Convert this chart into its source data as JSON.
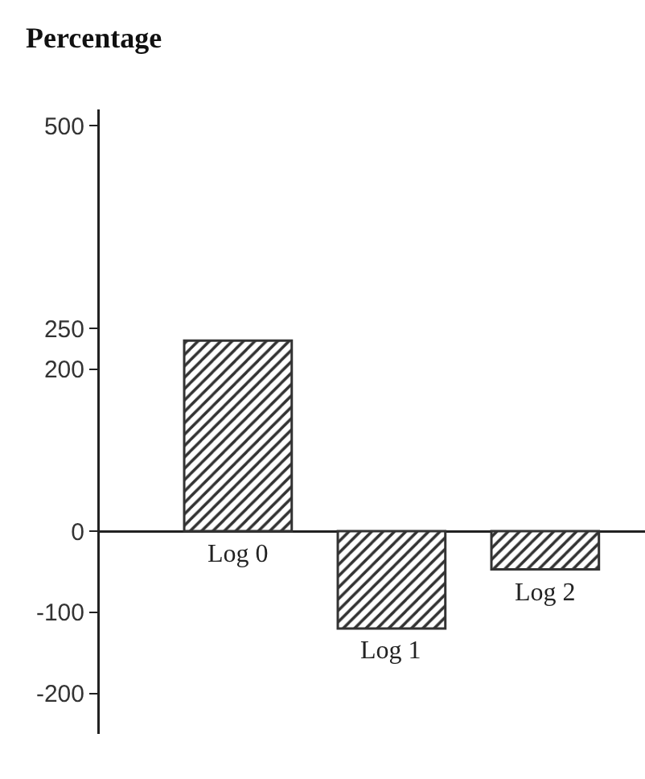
{
  "chart_data": {
    "type": "bar",
    "title": "Percentage",
    "categories": [
      "Log 0",
      "Log 1",
      "Log 2"
    ],
    "values": [
      235,
      -120,
      -47
    ],
    "color": "#333333",
    "ylim": [
      -250,
      520
    ],
    "yticks": [
      -200,
      -100,
      0,
      200,
      250,
      500
    ],
    "legend": false
  }
}
